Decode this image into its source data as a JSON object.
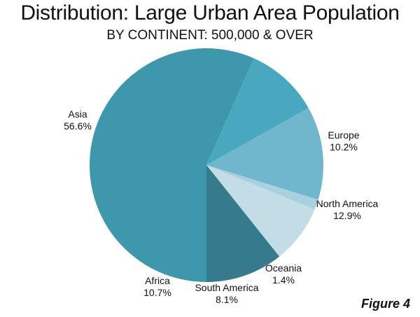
{
  "chart_data": {
    "type": "pie",
    "title": "Distribution: Large Urban Area Population",
    "subtitle": "BY CONTINENT: 500,000 & OVER",
    "slices": [
      {
        "name": "Asia",
        "label": "56.6%",
        "value": 56.6,
        "color": "#3f97ab"
      },
      {
        "name": "Europe",
        "label": "10.2%",
        "value": 10.2,
        "color": "#47a8c0"
      },
      {
        "name": "North America",
        "label": "12.9%",
        "value": 12.9,
        "color": "#70b6cc"
      },
      {
        "name": "Oceania",
        "label": "1.4%",
        "value": 1.4,
        "color": "#a8d0de"
      },
      {
        "name": "South America",
        "label": "8.1%",
        "value": 8.1,
        "color": "#c3dde6"
      },
      {
        "name": "Africa",
        "label": "10.7%",
        "value": 10.7,
        "color": "#357a8d"
      }
    ]
  },
  "figure_label": "Figure 4"
}
